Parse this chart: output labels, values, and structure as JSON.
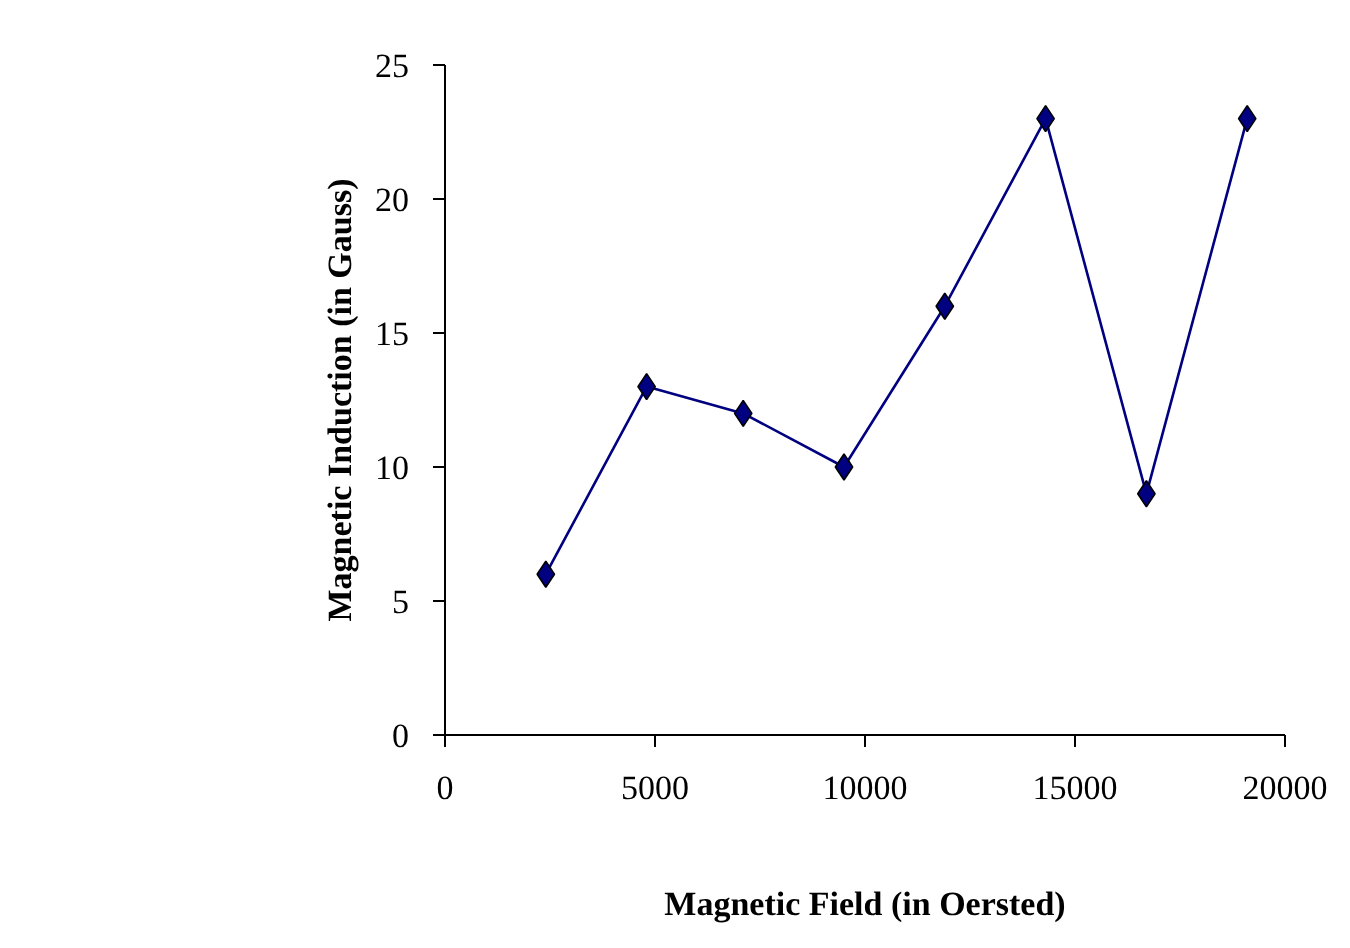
{
  "chart_data": {
    "type": "line",
    "xlabel": "Magnetic Field (in Oersted)",
    "ylabel": "Magnetic Induction (in Gauss)",
    "x": [
      2400,
      4800,
      7100,
      9500,
      11900,
      14300,
      16700,
      19100
    ],
    "series": [
      {
        "color": "#000080",
        "values": [
          6,
          13,
          12,
          10,
          16,
          23,
          9,
          23
        ]
      }
    ],
    "xlim": [
      0,
      20000
    ],
    "xticks": [
      0,
      5000,
      10000,
      15000,
      20000
    ],
    "ylim": [
      0,
      25
    ],
    "yticks": [
      0,
      5,
      10,
      15,
      20,
      25
    ],
    "grid": false,
    "marker": "diamond",
    "line_style": "solid"
  }
}
